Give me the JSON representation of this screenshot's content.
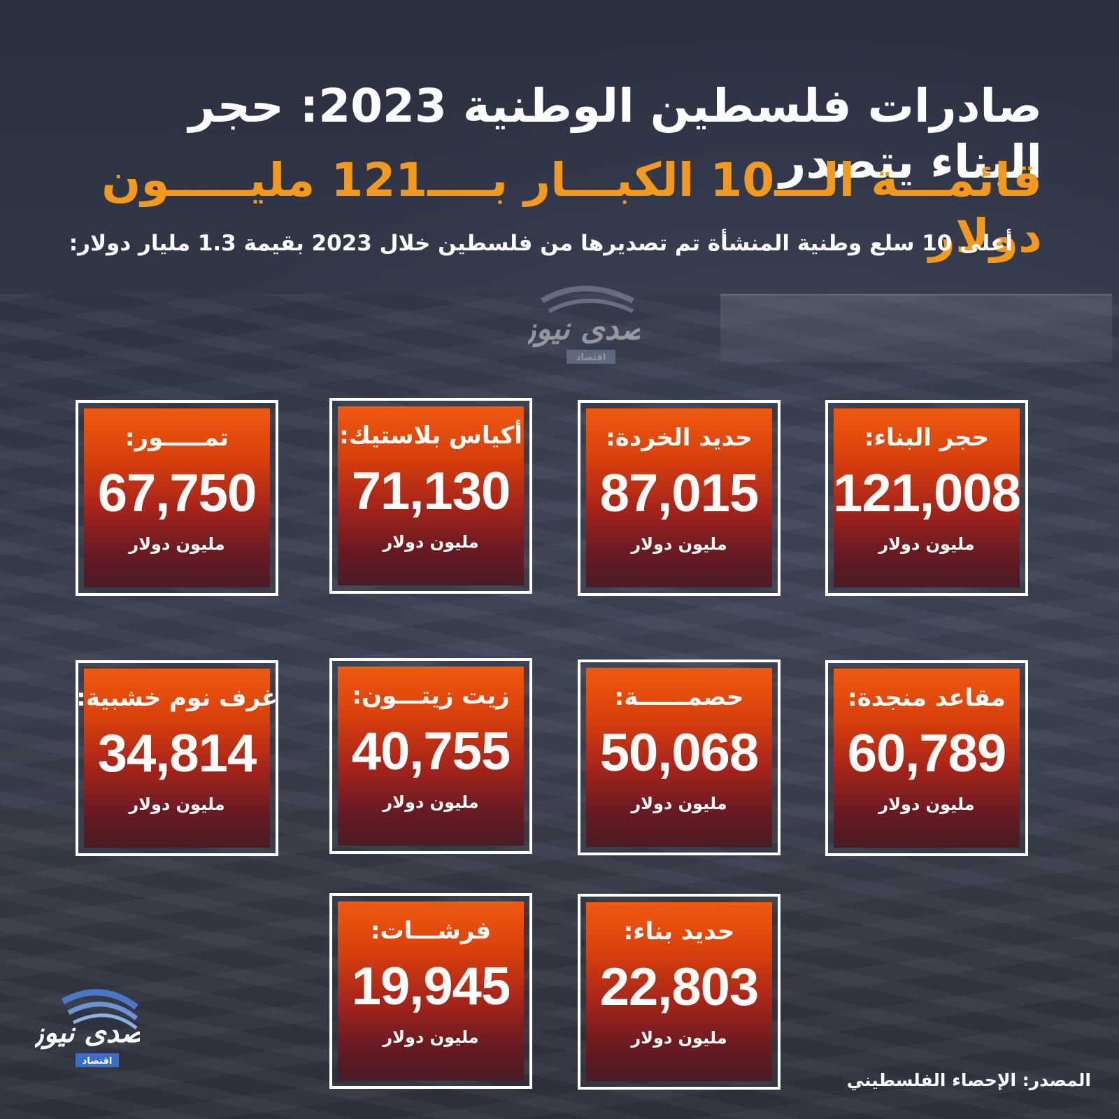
{
  "header": {
    "title_line1": "صادرات فلسطين الوطنية 2023: حجر البناء يتصدر",
    "title_line2": "قائمـــة الـــ10 الكبـــار بــــ121 مليـــــون دولار",
    "subtitle": "أعلى 10 سلع وطنية المنشأة تم تصديرها من فلسطين خلال 2023 بقيمة 1.3 مليار دولار:"
  },
  "colors": {
    "title_accent": "#f39a1c",
    "card_top": "#f05a0e",
    "card_bottom": "#4a1b24",
    "border": "#ffffff"
  },
  "unit": "مليون دولار",
  "cards": [
    {
      "label": "حجر البناء:",
      "value": "121,008"
    },
    {
      "label": "حديد الخردة:",
      "value": "87,015"
    },
    {
      "label": "أكياس بلاستيك:",
      "value": "71,130"
    },
    {
      "label": "تمـــــور:",
      "value": "67,750"
    },
    {
      "label": "مقاعد منجدة:",
      "value": "60,789"
    },
    {
      "label": "حصمــــــة:",
      "value": "50,068"
    },
    {
      "label": "زيت زيتـــون:",
      "value": "40,755"
    },
    {
      "label": "غرف نوم خشبية:",
      "value": "34,814"
    },
    {
      "label": "حديد بناء:",
      "value": "22,803"
    },
    {
      "label": "فرشـــات:",
      "value": "19,945"
    }
  ],
  "logo": {
    "name": "صدى نيوز",
    "tag": "اقتصاد"
  },
  "source": "المصدر: الإحصاء الفلسطيني"
}
